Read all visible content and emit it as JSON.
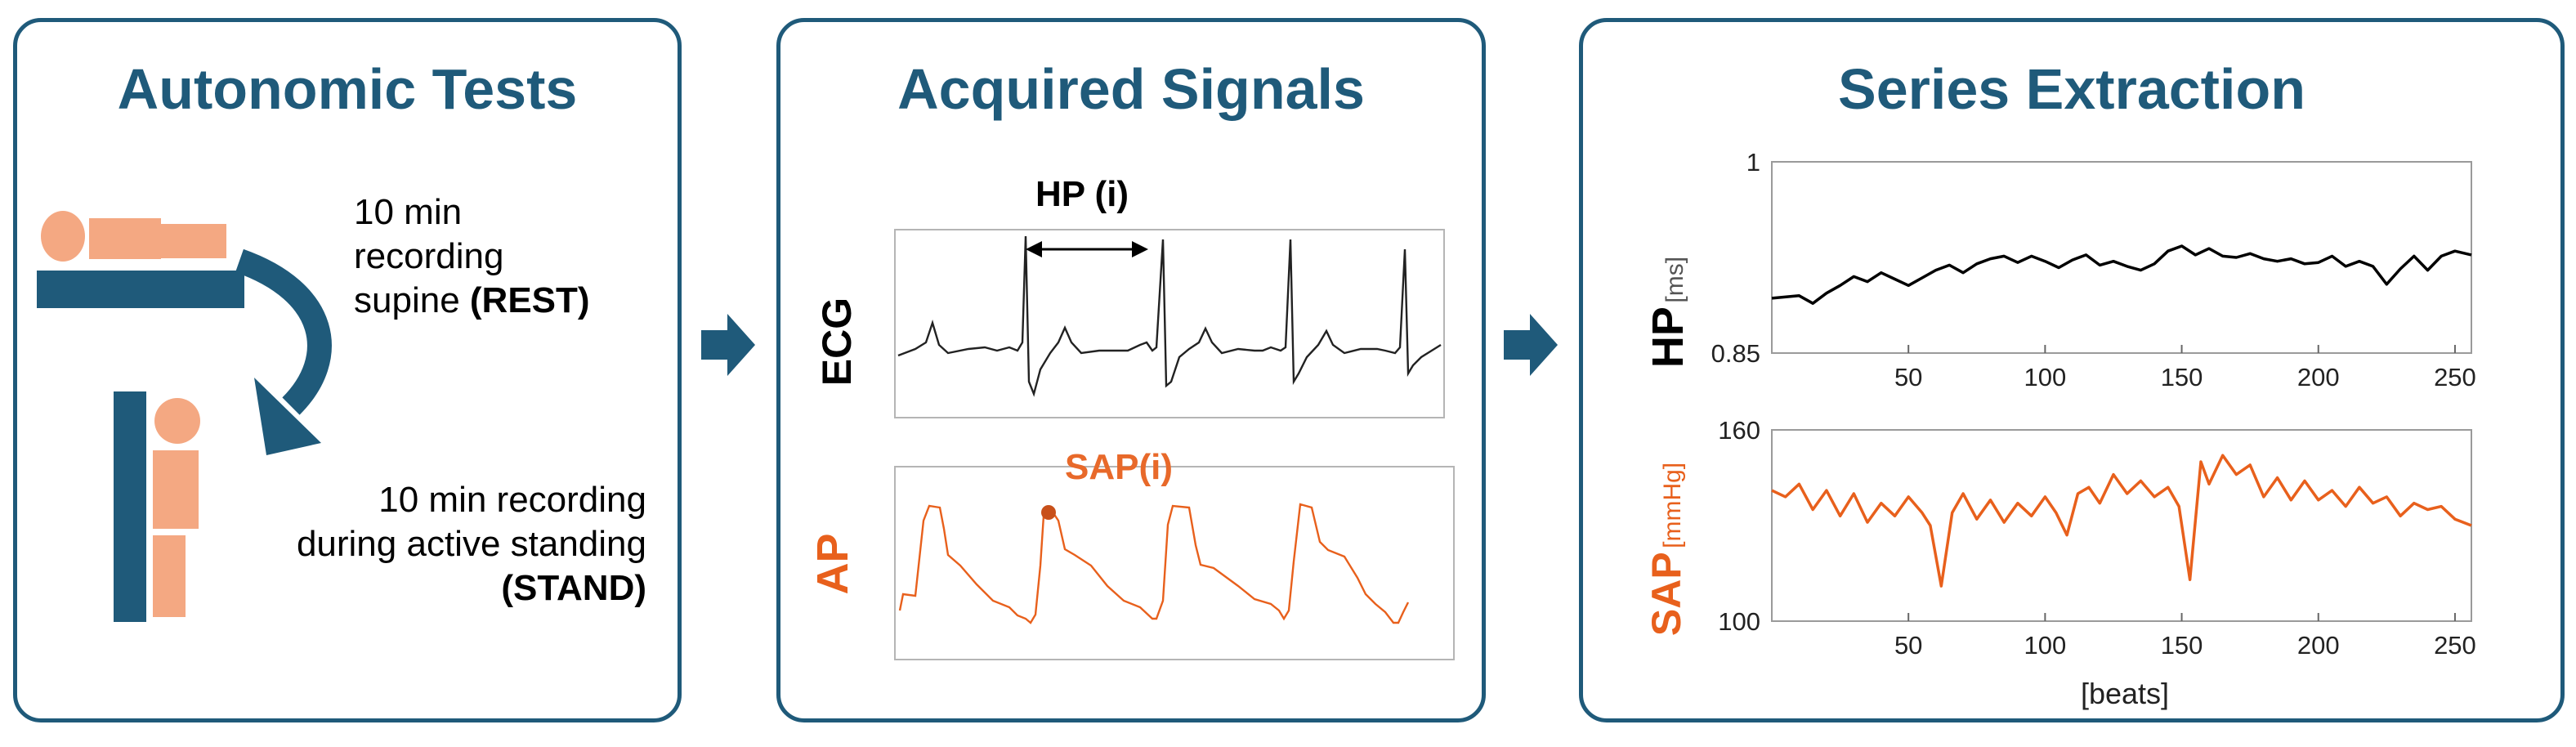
{
  "panels": {
    "autonomic": {
      "title": "Autonomic Tests",
      "rest_text": [
        "10 min",
        "recording"
      ],
      "rest_line3_prefix": "supine ",
      "rest_line3_bold": "(REST)",
      "stand_text": [
        "10 min recording",
        "during active standing"
      ],
      "stand_bold": "(STAND)"
    },
    "acquired": {
      "title": "Acquired Signals",
      "hp_label": "HP (i)",
      "ecg_label": "ECG",
      "sap_label": "SAP(i)",
      "ap_label": "AP"
    },
    "series": {
      "title": "Series Extraction",
      "hp_axis": "HP",
      "hp_unit": "[ms]",
      "sap_axis": "SAP",
      "sap_unit": "[mmHg]",
      "xlabel": "[beats]"
    }
  },
  "colors": {
    "accent": "#1f5a7a",
    "body_figure": "#f4a882",
    "ap_orange": "#e8601c",
    "sap_label": "#e8692a",
    "sap_dot": "#c8501a"
  },
  "chart_data": [
    {
      "type": "line",
      "name": "hp-series",
      "ylabel": "HP [ms]",
      "xlim": [
        0,
        256
      ],
      "ylim": [
        0.85,
        1
      ],
      "x_ticks": [
        50,
        100,
        150,
        200,
        250
      ],
      "y_ticks": [
        0.85,
        1
      ],
      "y_tick_labels": [
        "0.85",
        "1"
      ],
      "color": "#000000",
      "x": [
        0,
        10,
        15,
        20,
        25,
        30,
        35,
        40,
        45,
        50,
        55,
        60,
        65,
        70,
        75,
        80,
        85,
        90,
        95,
        100,
        105,
        110,
        115,
        120,
        125,
        130,
        135,
        140,
        145,
        150,
        155,
        160,
        165,
        170,
        175,
        180,
        185,
        190,
        195,
        200,
        205,
        210,
        215,
        220,
        225,
        230,
        235,
        240,
        245,
        250,
        256
      ],
      "values": [
        0.893,
        0.895,
        0.889,
        0.897,
        0.903,
        0.91,
        0.906,
        0.913,
        0.908,
        0.903,
        0.909,
        0.915,
        0.919,
        0.913,
        0.92,
        0.924,
        0.926,
        0.921,
        0.926,
        0.922,
        0.917,
        0.923,
        0.927,
        0.919,
        0.922,
        0.918,
        0.915,
        0.92,
        0.93,
        0.934,
        0.927,
        0.932,
        0.926,
        0.925,
        0.928,
        0.924,
        0.922,
        0.924,
        0.92,
        0.921,
        0.926,
        0.918,
        0.922,
        0.918,
        0.904,
        0.916,
        0.926,
        0.915,
        0.926,
        0.93,
        0.927
      ]
    },
    {
      "type": "line",
      "name": "sap-series",
      "ylabel": "SAP [mmHg]",
      "xlabel": "[beats]",
      "xlim": [
        0,
        256
      ],
      "ylim": [
        100,
        160
      ],
      "x_ticks": [
        50,
        100,
        150,
        200,
        250
      ],
      "y_ticks": [
        100,
        160
      ],
      "y_tick_labels": [
        "100",
        "160"
      ],
      "color": "#e8601c",
      "x": [
        0,
        5,
        10,
        15,
        20,
        25,
        30,
        35,
        40,
        45,
        50,
        55,
        58,
        62,
        66,
        70,
        75,
        80,
        85,
        90,
        95,
        100,
        104,
        108,
        112,
        116,
        120,
        125,
        130,
        135,
        140,
        145,
        149,
        153,
        157,
        160,
        165,
        170,
        175,
        180,
        185,
        190,
        195,
        200,
        205,
        210,
        215,
        220,
        225,
        230,
        235,
        240,
        245,
        250,
        256
      ],
      "values": [
        141,
        139,
        143,
        135,
        141,
        133,
        140,
        131,
        137,
        133,
        139,
        134,
        130,
        111,
        134,
        140,
        132,
        138,
        131,
        137,
        133,
        139,
        134,
        127,
        140,
        142,
        137,
        146,
        140,
        144,
        139,
        142,
        136,
        113,
        150,
        143,
        152,
        146,
        149,
        139,
        145,
        138,
        144,
        138,
        141,
        136,
        142,
        137,
        139,
        133,
        137,
        135,
        136,
        132,
        130
      ]
    }
  ]
}
